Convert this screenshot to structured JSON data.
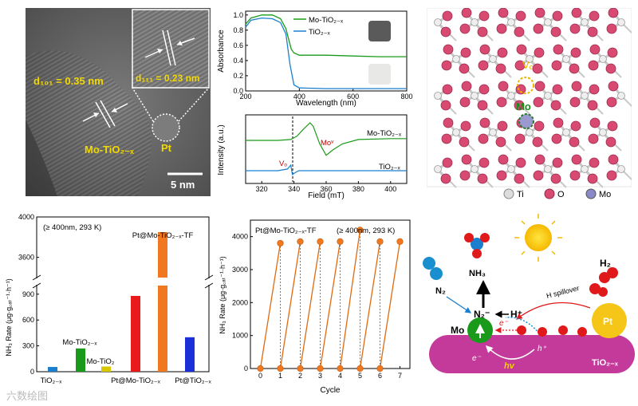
{
  "tem": {
    "d_left_label": "d₁₀₁ = 0.35 nm",
    "d_right_label": "d₁₁₁ = 0.23 nm",
    "material": "Mo-TiO₂₋ₓ",
    "pt": "Pt",
    "scale": "5 nm"
  },
  "uv": {
    "ylabel": "Absorbance",
    "xlabel": "Wavelength (nm)",
    "legend": [
      "Mo-TiO₂₋ₓ",
      "TiO₂₋ₓ"
    ],
    "xticks": [
      "200",
      "400",
      "600",
      "800"
    ],
    "yticks": [
      "0.0",
      "0.2",
      "0.4",
      "0.6",
      "0.8",
      "1.0"
    ],
    "colors": {
      "mo": "#1a9a1a",
      "ti": "#1a7fcf"
    }
  },
  "epr": {
    "ylabel": "Intensity (a.u.)",
    "xlabel": "Field (mT)",
    "series_mo": "Mo-TiO₂₋ₓ",
    "series_ti": "TiO₂₋ₓ",
    "mo_label": "Moᵛ",
    "vo_label": "Vₒ",
    "xticks": [
      "320",
      "340",
      "360",
      "380",
      "400"
    ]
  },
  "crystal": {
    "vo": "Vₒ",
    "mo": "Mo",
    "legend": [
      "Ti",
      "O",
      "Mo"
    ]
  },
  "bar": {
    "condition": "(≥ 400nm, 293 K)",
    "ylabel": "NH₃ Rate (μg·g꜀ₐₜ⁻¹·h⁻¹)",
    "yticks": [
      "0",
      "300",
      "600",
      "900",
      "3600",
      "4000"
    ],
    "categories": [
      "TiO₂₋ₓ",
      "Mo-TiO₂₋ₓ",
      "Mo-TiO₂",
      "Pt@Mo-TiO₂₋ₓ",
      "Pt@Mo-TiO₂₋ₓ-TF",
      "Pt@TiO₂₋ₓ"
    ]
  },
  "cycle": {
    "title": "Pt@Mo-TiO₂₋ₓ-TF",
    "condition": "(≥ 400nm, 293 K)",
    "ylabel": "NH₃ Rate (μg·g꜀ₐₜ⁻¹·h⁻¹)",
    "xlabel": "Cycle",
    "yticks": [
      "0",
      "1000",
      "2000",
      "3000",
      "4000"
    ],
    "xticks": [
      "0",
      "1",
      "2",
      "3",
      "4",
      "5",
      "6",
      "7"
    ]
  },
  "scheme": {
    "nh3": "NH₃",
    "n2": "N₂",
    "n2m": "N₂⁻",
    "hplus": "H⁺",
    "h2": "H₂",
    "mo": "Mo",
    "pt": "Pt",
    "spill": "H spillover",
    "e1": "e⁻",
    "e2": "e⁻",
    "hp": "h⁺",
    "hv": "hv",
    "support": "TiO₂₋ₓ"
  },
  "watermark": "六数绘图",
  "chart_data": [
    {
      "type": "bar",
      "categories": [
        "TiO₂₋ₓ",
        "Mo-TiO₂₋ₓ",
        "Mo-TiO₂",
        "Pt@Mo-TiO₂₋ₓ",
        "Pt@Mo-TiO₂₋ₓ-TF",
        "Pt@TiO₂₋ₓ"
      ],
      "values": [
        55,
        270,
        60,
        880,
        3850,
        400
      ],
      "colors": [
        "#1a7fcf",
        "#1a9a1a",
        "#d8c800",
        "#ea1a1a",
        "#f07820",
        "#1a2fd8"
      ],
      "ylabel": "NH₃ Rate (μg·g꜀ₐₜ⁻¹·h⁻¹)",
      "ylim": [
        0,
        4000
      ],
      "broken_axis": [
        1000,
        3400
      ]
    },
    {
      "type": "line",
      "title": "Pt@Mo-TiO₂₋ₓ-TF",
      "x": [
        0,
        1,
        1,
        2,
        2,
        3,
        3,
        4,
        4,
        5,
        5,
        6,
        6,
        7
      ],
      "y": [
        0,
        3800,
        0,
        3850,
        0,
        3850,
        0,
        3850,
        0,
        4200,
        0,
        3850,
        0,
        3850
      ],
      "xlabel": "Cycle",
      "ylabel": "NH₃ Rate (μg·g꜀ₐₜ⁻¹·h⁻¹)",
      "xlim": [
        -0.5,
        7.5
      ],
      "ylim": [
        0,
        4500
      ]
    },
    {
      "type": "line",
      "xlabel": "Wavelength (nm)",
      "ylabel": "Absorbance",
      "xlim": [
        200,
        800
      ],
      "ylim": [
        0,
        1.05
      ],
      "series": [
        {
          "name": "Mo-TiO₂₋ₓ",
          "x": [
            200,
            220,
            260,
            300,
            330,
            350,
            370,
            380,
            400,
            500,
            600,
            700,
            800
          ],
          "y": [
            0.88,
            0.96,
            1.0,
            1.0,
            0.95,
            0.82,
            0.55,
            0.5,
            0.47,
            0.47,
            0.46,
            0.45,
            0.45
          ]
        },
        {
          "name": "TiO₂₋ₓ",
          "x": [
            200,
            220,
            260,
            300,
            330,
            350,
            365,
            380,
            400,
            500,
            600,
            700,
            800
          ],
          "y": [
            0.84,
            0.93,
            0.96,
            0.95,
            0.9,
            0.75,
            0.35,
            0.08,
            0.04,
            0.03,
            0.03,
            0.03,
            0.03
          ]
        }
      ]
    },
    {
      "type": "line",
      "xlabel": "Field (mT)",
      "ylabel": "Intensity (a.u.)",
      "xlim": [
        310,
        410
      ],
      "series": [
        {
          "name": "Mo-TiO₂₋ₓ",
          "x": [
            310,
            330,
            338,
            342,
            346,
            350,
            352,
            356,
            360,
            364,
            370,
            380,
            400,
            410
          ],
          "y": [
            0,
            0,
            0.05,
            0.25,
            0.65,
            1.0,
            0.8,
            -0.2,
            -0.85,
            -0.55,
            -0.2,
            0.05,
            0.1,
            0.1
          ]
        },
        {
          "name": "TiO₂₋ₓ",
          "x": [
            310,
            330,
            336,
            338,
            339,
            341,
            343,
            350,
            370,
            400,
            410
          ],
          "y": [
            0,
            0,
            0.15,
            0.5,
            -0.35,
            -0.15,
            0,
            0,
            0,
            0,
            0
          ]
        }
      ]
    }
  ]
}
